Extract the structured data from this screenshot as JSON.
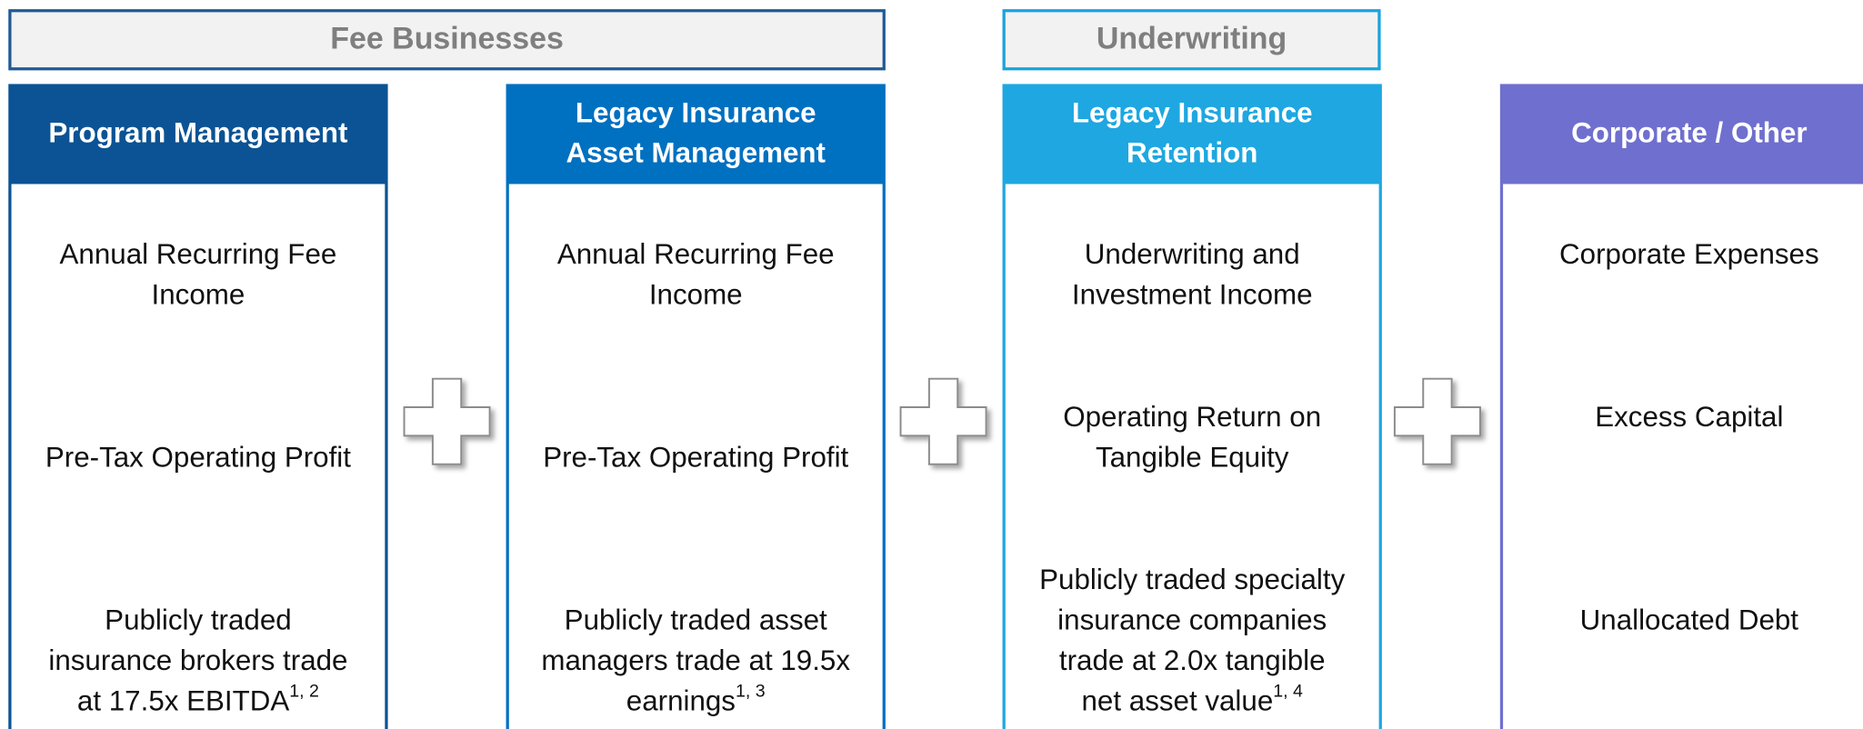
{
  "groups": [
    {
      "title": "Fee Businesses"
    },
    {
      "title": "Underwriting"
    }
  ],
  "columns": [
    {
      "title_lines": [
        "Program Management"
      ],
      "items": [
        {
          "lines": [
            "Annual Recurring Fee",
            "Income"
          ]
        },
        {
          "lines": [
            "Pre-Tax Operating Profit"
          ]
        },
        {
          "lines": [
            "Publicly traded",
            "insurance brokers trade",
            "at 17.5x EBITDA"
          ],
          "note": "1, 2"
        }
      ]
    },
    {
      "title_lines": [
        "Legacy Insurance",
        "Asset Management"
      ],
      "items": [
        {
          "lines": [
            "Annual Recurring Fee",
            "Income"
          ]
        },
        {
          "lines": [
            "Pre-Tax Operating Profit"
          ]
        },
        {
          "lines": [
            "Publicly traded asset",
            "managers trade at 19.5x",
            "earnings"
          ],
          "note": "1, 3"
        }
      ]
    },
    {
      "title_lines": [
        "Legacy Insurance",
        "Retention"
      ],
      "items": [
        {
          "lines": [
            "Underwriting and",
            "Investment Income"
          ]
        },
        {
          "lines": [
            "Operating Return on",
            "Tangible Equity"
          ]
        },
        {
          "lines": [
            "Publicly traded specialty",
            "insurance companies",
            "trade at 2.0x tangible",
            "net asset value"
          ],
          "note": "1, 4"
        }
      ]
    },
    {
      "title_lines": [
        "Corporate / Other"
      ],
      "items": [
        {
          "lines": [
            "Corporate Expenses"
          ]
        },
        {
          "lines": [
            "Excess Capital"
          ]
        },
        {
          "lines": [
            "Unallocated Debt"
          ]
        }
      ]
    }
  ]
}
